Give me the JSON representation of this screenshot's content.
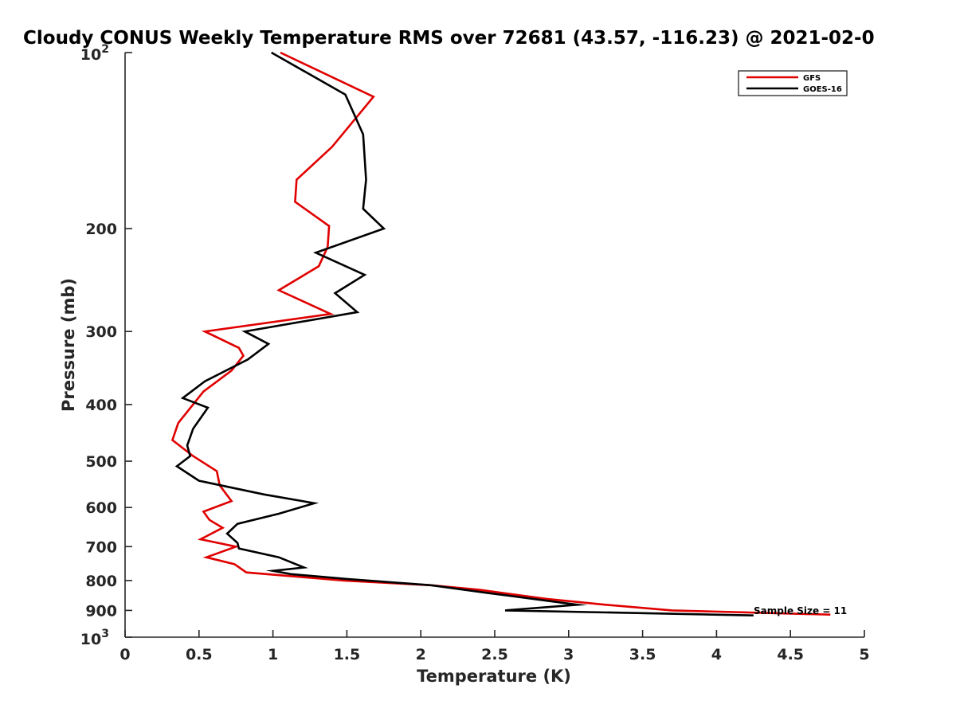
{
  "chart_data": {
    "type": "line",
    "title": "Cloudy CONUS Weekly Temperature RMS over 72681 (43.57, -116.23) @ 2021-02-0",
    "xlabel": "Temperature (K)",
    "ylabel": "Pressure (mb)",
    "xlim": [
      0,
      5
    ],
    "ylim": [
      100,
      1000
    ],
    "y_scale": "log",
    "y_reversed": true,
    "x_ticks": [
      "0",
      "0.5",
      "1",
      "1.5",
      "2",
      "2.5",
      "3",
      "3.5",
      "4",
      "4.5",
      "5"
    ],
    "y_ticks": [
      {
        "value": 100,
        "base": "10",
        "exp": "2"
      },
      {
        "value": 200,
        "label": "200"
      },
      {
        "value": 300,
        "label": "300"
      },
      {
        "value": 400,
        "label": "400"
      },
      {
        "value": 500,
        "label": "500"
      },
      {
        "value": 600,
        "label": "600"
      },
      {
        "value": 700,
        "label": "700"
      },
      {
        "value": 800,
        "label": "800"
      },
      {
        "value": 900,
        "label": "900"
      },
      {
        "value": 1000,
        "base": "10",
        "exp": "3"
      }
    ],
    "grid": false,
    "legend_position": "top-right",
    "annotation": "Sample Size = 11",
    "series": [
      {
        "name": "GFS",
        "color": "#e00000",
        "points": [
          [
            1.05,
            100
          ],
          [
            1.68,
            119
          ],
          [
            1.4,
            145
          ],
          [
            1.16,
            165
          ],
          [
            1.15,
            180
          ],
          [
            1.38,
            198
          ],
          [
            1.37,
            215
          ],
          [
            1.31,
            232
          ],
          [
            1.04,
            255
          ],
          [
            1.39,
            280
          ],
          [
            0.54,
            300
          ],
          [
            0.77,
            320
          ],
          [
            0.8,
            330
          ],
          [
            0.72,
            350
          ],
          [
            0.53,
            380
          ],
          [
            0.36,
            430
          ],
          [
            0.32,
            460
          ],
          [
            0.46,
            490
          ],
          [
            0.62,
            520
          ],
          [
            0.64,
            550
          ],
          [
            0.72,
            585
          ],
          [
            0.53,
            610
          ],
          [
            0.57,
            630
          ],
          [
            0.66,
            650
          ],
          [
            0.51,
            680
          ],
          [
            0.75,
            700
          ],
          [
            0.55,
            730
          ],
          [
            0.74,
            750
          ],
          [
            0.82,
            775
          ],
          [
            1.48,
            800
          ],
          [
            2.07,
            815
          ],
          [
            2.4,
            830
          ],
          [
            2.85,
            860
          ],
          [
            3.25,
            880
          ],
          [
            3.7,
            900
          ],
          [
            4.4,
            910
          ],
          [
            4.77,
            915
          ]
        ]
      },
      {
        "name": "GOES-16",
        "color": "#000000",
        "points": [
          [
            0.99,
            100
          ],
          [
            1.49,
            118
          ],
          [
            1.61,
            138
          ],
          [
            1.63,
            165
          ],
          [
            1.61,
            185
          ],
          [
            1.75,
            200
          ],
          [
            1.29,
            220
          ],
          [
            1.62,
            240
          ],
          [
            1.42,
            258
          ],
          [
            1.57,
            278
          ],
          [
            0.81,
            300
          ],
          [
            0.97,
            315
          ],
          [
            0.83,
            335
          ],
          [
            0.54,
            365
          ],
          [
            0.39,
            390
          ],
          [
            0.56,
            405
          ],
          [
            0.46,
            440
          ],
          [
            0.42,
            470
          ],
          [
            0.44,
            490
          ],
          [
            0.35,
            510
          ],
          [
            0.5,
            540
          ],
          [
            0.94,
            570
          ],
          [
            1.28,
            590
          ],
          [
            1.04,
            615
          ],
          [
            0.76,
            640
          ],
          [
            0.69,
            665
          ],
          [
            0.76,
            690
          ],
          [
            0.77,
            705
          ],
          [
            1.04,
            730
          ],
          [
            1.21,
            760
          ],
          [
            1.0,
            770
          ],
          [
            1.12,
            780
          ],
          [
            1.5,
            795
          ],
          [
            2.07,
            815
          ],
          [
            2.45,
            840
          ],
          [
            3.06,
            880
          ],
          [
            2.57,
            900
          ],
          [
            4.25,
            918
          ]
        ]
      }
    ]
  }
}
